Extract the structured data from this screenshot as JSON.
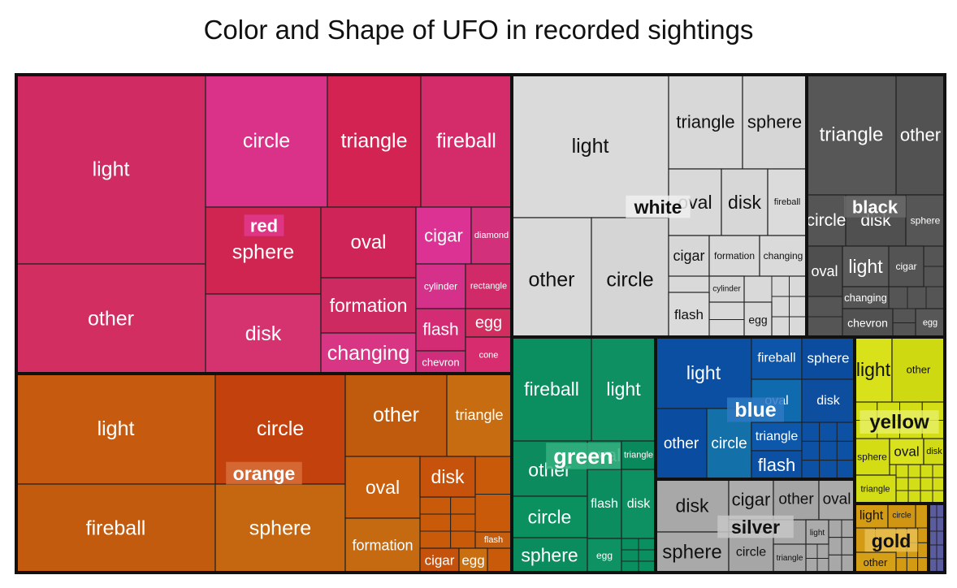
{
  "chart_data": {
    "type": "treemap",
    "title": "Color and Shape of UFO in recorded sightings",
    "groups": [
      {
        "name": "red",
        "color": "#d62f5e",
        "items": [
          {
            "label": "light",
            "value": 3050,
            "color": "#d02b62"
          },
          {
            "label": "other",
            "value": 2550,
            "color": "#d22e61"
          },
          {
            "label": "circle",
            "value": 1200,
            "color": "#da3288"
          },
          {
            "label": "triangle",
            "value": 1100,
            "color": "#d22353"
          },
          {
            "label": "fireball",
            "value": 990,
            "color": "#d42c6b"
          },
          {
            "label": "sphere",
            "value": 1030,
            "color": "#cf2550"
          },
          {
            "label": "disk",
            "value": 880,
            "color": "#d43370"
          },
          {
            "label": "oval",
            "value": 740,
            "color": "#cf2458"
          },
          {
            "label": "formation",
            "value": 560,
            "color": "#cc2a60"
          },
          {
            "label": "changing",
            "value": 460,
            "color": "#d83585"
          },
          {
            "label": "cigar",
            "value": 330,
            "color": "#dc3294"
          },
          {
            "label": "diamond",
            "value": 260,
            "color": "#d2307a"
          },
          {
            "label": "cylinder",
            "value": 250,
            "color": "#d6318a"
          },
          {
            "label": "rectangle",
            "value": 225,
            "color": "#d02a68"
          },
          {
            "label": "flash",
            "value": 230,
            "color": "#d42c74"
          },
          {
            "label": "egg",
            "value": 175,
            "color": "#d12d5e"
          },
          {
            "label": "chevron",
            "value": 180,
            "color": "#d02e7c"
          },
          {
            "label": "cone",
            "value": 110,
            "color": "#d72d6e"
          }
        ]
      },
      {
        "name": "orange",
        "color": "#c85a0a",
        "items": [
          {
            "label": "light",
            "value": 1700,
            "color": "#c65a0e"
          },
          {
            "label": "fireball",
            "value": 1530,
            "color": "#c35b0e"
          },
          {
            "label": "circle",
            "value": 1010,
            "color": "#c3410d"
          },
          {
            "label": "sphere",
            "value": 970,
            "color": "#c56611"
          },
          {
            "label": "other",
            "value": 570,
            "color": "#c05a0c"
          },
          {
            "label": "triangle",
            "value": 360,
            "color": "#c86c12"
          },
          {
            "label": "oval",
            "value": 355,
            "color": "#c8600e"
          },
          {
            "label": "disk",
            "value": 240,
            "color": "#c7520c"
          },
          {
            "label": "formation",
            "value": 300,
            "color": "#c56a10"
          },
          {
            "label": "flash",
            "value": 80,
            "color": "#c65e0f"
          },
          {
            "label": "cigar",
            "value": 80,
            "color": "#c4520d"
          },
          {
            "label": "egg",
            "value": 60,
            "color": "#c96f12"
          }
        ]
      },
      {
        "name": "white",
        "color": "#d9d9d9",
        "items": [
          {
            "label": "light",
            "value": 2340,
            "color": "#dadada"
          },
          {
            "label": "other",
            "value": 1000,
            "color": "#d9d9d9"
          },
          {
            "label": "circle",
            "value": 1020,
            "color": "#d5d5d5"
          },
          {
            "label": "triangle",
            "value": 630,
            "color": "#d8d8d8"
          },
          {
            "label": "sphere",
            "value": 470,
            "color": "#d6d6d6"
          },
          {
            "label": "oval",
            "value": 370,
            "color": "#d9d9d9"
          },
          {
            "label": "disk",
            "value": 360,
            "color": "#d7d7d7"
          },
          {
            "label": "fireball",
            "value": 230,
            "color": "#dbdbdb"
          },
          {
            "label": "cigar",
            "value": 230,
            "color": "#d7d7d7"
          },
          {
            "label": "formation",
            "value": 230,
            "color": "#d9d9d9"
          },
          {
            "label": "changing",
            "value": 180,
            "color": "#dadada"
          },
          {
            "label": "cylinder",
            "value": 160,
            "color": "#d7d7d7"
          },
          {
            "label": "flash",
            "value": 220,
            "color": "#dbdbdb"
          },
          {
            "label": "egg",
            "value": 75,
            "color": "#d8d8d8"
          }
        ]
      },
      {
        "name": "black",
        "color": "#555555",
        "items": [
          {
            "label": "triangle",
            "value": 550,
            "color": "#575757"
          },
          {
            "label": "other",
            "value": 210,
            "color": "#525252"
          },
          {
            "label": "circle",
            "value": 175,
            "color": "#555555"
          },
          {
            "label": "disk",
            "value": 185,
            "color": "#505050"
          },
          {
            "label": "sphere",
            "value": 90,
            "color": "#565656"
          },
          {
            "label": "oval",
            "value": 150,
            "color": "#4f4f4f"
          },
          {
            "label": "light",
            "value": 165,
            "color": "#5a5a5a"
          },
          {
            "label": "cigar",
            "value": 85,
            "color": "#545454"
          },
          {
            "label": "changing",
            "value": 80,
            "color": "#555555"
          },
          {
            "label": "chevron",
            "value": 80,
            "color": "#515151"
          },
          {
            "label": "egg",
            "value": 30,
            "color": "#575757"
          }
        ]
      },
      {
        "name": "green",
        "color": "#0a8f61",
        "items": [
          {
            "label": "fireball",
            "value": 470,
            "color": "#0b8e60"
          },
          {
            "label": "light",
            "value": 480,
            "color": "#0e9062"
          },
          {
            "label": "other",
            "value": 330,
            "color": "#0c8c5e"
          },
          {
            "label": "oval",
            "value": 110,
            "color": "#109064"
          },
          {
            "label": "triangle",
            "value": 80,
            "color": "#0a8a5c"
          },
          {
            "label": "circle",
            "value": 250,
            "color": "#0b9060"
          },
          {
            "label": "flash",
            "value": 100,
            "color": "#0c8d60"
          },
          {
            "label": "disk",
            "value": 80,
            "color": "#0e9162"
          },
          {
            "label": "sphere",
            "value": 190,
            "color": "#0a8c5e"
          },
          {
            "label": "egg",
            "value": 40,
            "color": "#0f9263"
          }
        ]
      },
      {
        "name": "blue",
        "color": "#0d51a5",
        "items": [
          {
            "label": "light",
            "value": 410,
            "color": "#0b4fa3"
          },
          {
            "label": "fireball",
            "value": 150,
            "color": "#0c55a8"
          },
          {
            "label": "sphere",
            "value": 140,
            "color": "#0b4c9e"
          },
          {
            "label": "oval",
            "value": 170,
            "color": "#0f6bae"
          },
          {
            "label": "disk",
            "value": 95,
            "color": "#0d4e9f"
          },
          {
            "label": "other",
            "value": 260,
            "color": "#0a4c9f"
          },
          {
            "label": "circle",
            "value": 170,
            "color": "#1370a8"
          },
          {
            "label": "triangle",
            "value": 90,
            "color": "#0d58aa"
          },
          {
            "label": "flash",
            "value": 110,
            "color": "#0c50a4"
          }
        ]
      },
      {
        "name": "silver",
        "color": "#a8a8a8",
        "items": [
          {
            "label": "disk",
            "value": 220,
            "color": "#a8a8a8"
          },
          {
            "label": "cigar",
            "value": 135,
            "color": "#acacac"
          },
          {
            "label": "other",
            "value": 110,
            "color": "#a5a5a5"
          },
          {
            "label": "oval",
            "value": 80,
            "color": "#aaaaaa"
          },
          {
            "label": "sphere",
            "value": 230,
            "color": "#a9a9a9"
          },
          {
            "label": "circle",
            "value": 140,
            "color": "#a6a6a6"
          },
          {
            "label": "light",
            "value": 65,
            "color": "#ababab"
          },
          {
            "label": "triangle",
            "value": 60,
            "color": "#a7a7a7"
          }
        ]
      },
      {
        "name": "yellow",
        "color": "#d4de16",
        "items": [
          {
            "label": "light",
            "value": 160,
            "color": "#d8e11a"
          },
          {
            "label": "other",
            "value": 80,
            "color": "#cfd912"
          },
          {
            "label": "sphere",
            "value": 70,
            "color": "#d4dc14"
          },
          {
            "label": "oval",
            "value": 60,
            "color": "#d9e21c"
          },
          {
            "label": "disk",
            "value": 25,
            "color": "#d0db15"
          },
          {
            "label": "triangle",
            "value": 40,
            "color": "#d3dd16"
          }
        ]
      },
      {
        "name": "gold",
        "color": "#d39a14",
        "items": [
          {
            "label": "light",
            "value": 60,
            "color": "#d49b14"
          },
          {
            "label": "circle",
            "value": 45,
            "color": "#d09512"
          },
          {
            "label": "other",
            "value": 60,
            "color": "#d6a016"
          }
        ]
      },
      {
        "name": "",
        "color": "#5b5ba0",
        "items": []
      }
    ]
  }
}
